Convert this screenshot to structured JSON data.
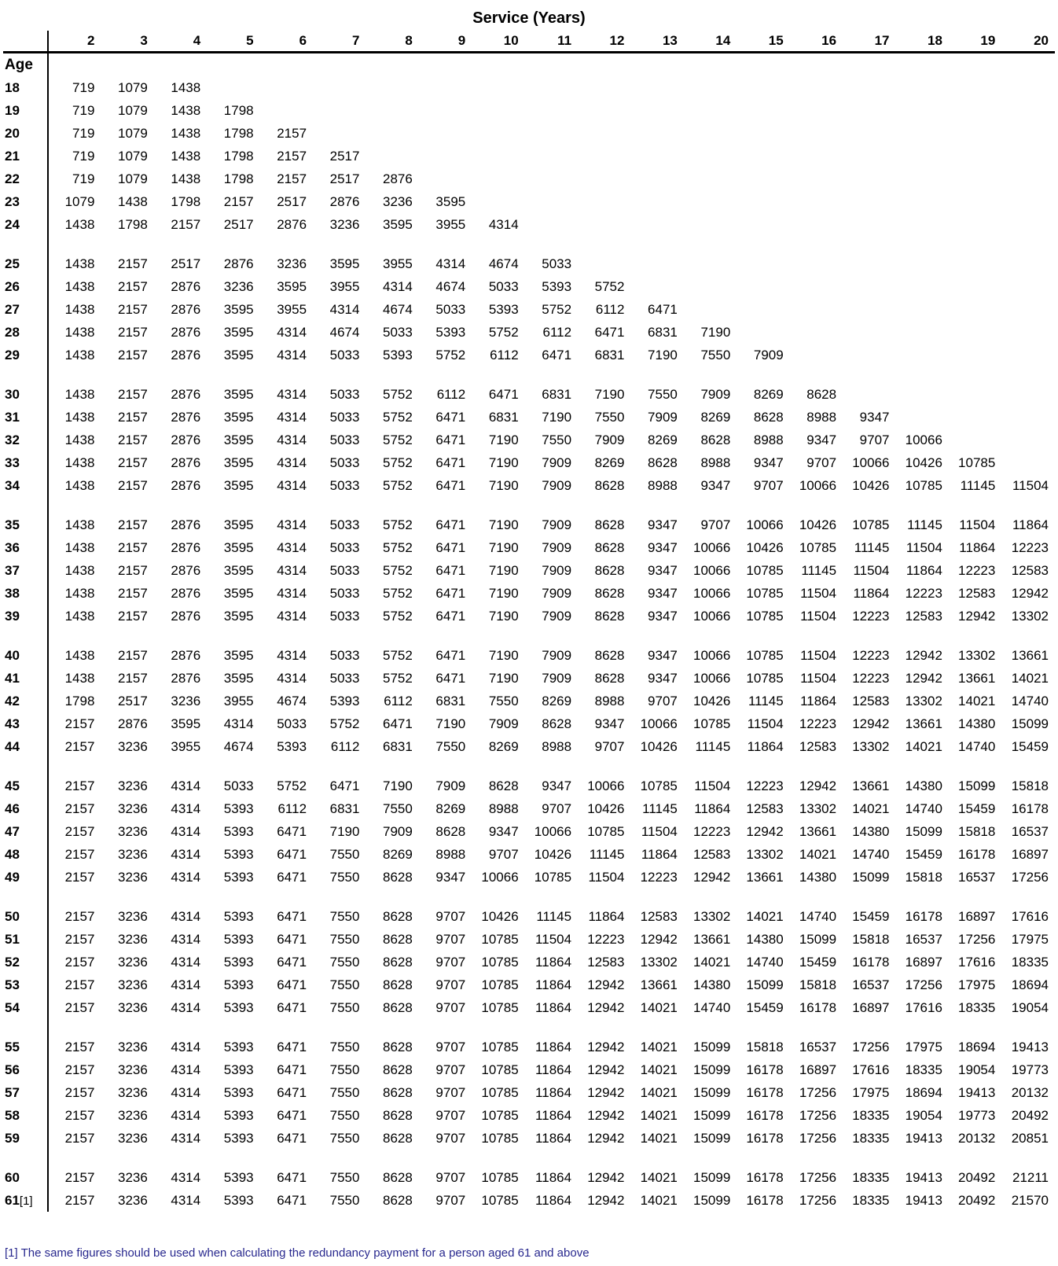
{
  "title": "Service (Years)",
  "age_header": "Age",
  "service_years": [
    "2",
    "3",
    "4",
    "5",
    "6",
    "7",
    "8",
    "9",
    "10",
    "11",
    "12",
    "13",
    "14",
    "15",
    "16",
    "17",
    "18",
    "19",
    "20"
  ],
  "footnote": "[1] The same figures should be used when calculating the redundancy payment for a person aged 61 and above",
  "colors": {
    "text": "#000000",
    "background": "#FFFFFF",
    "footnote_text": "#28288E",
    "rule": "#000000"
  },
  "groups": [
    {
      "rows": [
        {
          "age": "18",
          "values": [
            719,
            1079,
            1438
          ]
        },
        {
          "age": "19",
          "values": [
            719,
            1079,
            1438,
            1798
          ]
        },
        {
          "age": "20",
          "values": [
            719,
            1079,
            1438,
            1798,
            2157
          ]
        },
        {
          "age": "21",
          "values": [
            719,
            1079,
            1438,
            1798,
            2157,
            2517
          ]
        },
        {
          "age": "22",
          "values": [
            719,
            1079,
            1438,
            1798,
            2157,
            2517,
            2876
          ]
        },
        {
          "age": "23",
          "values": [
            1079,
            1438,
            1798,
            2157,
            2517,
            2876,
            3236,
            3595
          ]
        },
        {
          "age": "24",
          "values": [
            1438,
            1798,
            2157,
            2517,
            2876,
            3236,
            3595,
            3955,
            4314
          ]
        }
      ]
    },
    {
      "rows": [
        {
          "age": "25",
          "values": [
            1438,
            2157,
            2517,
            2876,
            3236,
            3595,
            3955,
            4314,
            4674,
            5033
          ]
        },
        {
          "age": "26",
          "values": [
            1438,
            2157,
            2876,
            3236,
            3595,
            3955,
            4314,
            4674,
            5033,
            5393,
            5752
          ]
        },
        {
          "age": "27",
          "values": [
            1438,
            2157,
            2876,
            3595,
            3955,
            4314,
            4674,
            5033,
            5393,
            5752,
            6112,
            6471
          ]
        },
        {
          "age": "28",
          "values": [
            1438,
            2157,
            2876,
            3595,
            4314,
            4674,
            5033,
            5393,
            5752,
            6112,
            6471,
            6831,
            7190
          ]
        },
        {
          "age": "29",
          "values": [
            1438,
            2157,
            2876,
            3595,
            4314,
            5033,
            5393,
            5752,
            6112,
            6471,
            6831,
            7190,
            7550,
            7909
          ]
        }
      ]
    },
    {
      "rows": [
        {
          "age": "30",
          "values": [
            1438,
            2157,
            2876,
            3595,
            4314,
            5033,
            5752,
            6112,
            6471,
            6831,
            7190,
            7550,
            7909,
            8269,
            8628
          ]
        },
        {
          "age": "31",
          "values": [
            1438,
            2157,
            2876,
            3595,
            4314,
            5033,
            5752,
            6471,
            6831,
            7190,
            7550,
            7909,
            8269,
            8628,
            8988,
            9347
          ]
        },
        {
          "age": "32",
          "values": [
            1438,
            2157,
            2876,
            3595,
            4314,
            5033,
            5752,
            6471,
            7190,
            7550,
            7909,
            8269,
            8628,
            8988,
            9347,
            9707,
            10066
          ]
        },
        {
          "age": "33",
          "values": [
            1438,
            2157,
            2876,
            3595,
            4314,
            5033,
            5752,
            6471,
            7190,
            7909,
            8269,
            8628,
            8988,
            9347,
            9707,
            10066,
            10426,
            10785
          ]
        },
        {
          "age": "34",
          "values": [
            1438,
            2157,
            2876,
            3595,
            4314,
            5033,
            5752,
            6471,
            7190,
            7909,
            8628,
            8988,
            9347,
            9707,
            10066,
            10426,
            10785,
            11145,
            11504
          ]
        }
      ]
    },
    {
      "rows": [
        {
          "age": "35",
          "values": [
            1438,
            2157,
            2876,
            3595,
            4314,
            5033,
            5752,
            6471,
            7190,
            7909,
            8628,
            9347,
            9707,
            10066,
            10426,
            10785,
            11145,
            11504,
            11864
          ]
        },
        {
          "age": "36",
          "values": [
            1438,
            2157,
            2876,
            3595,
            4314,
            5033,
            5752,
            6471,
            7190,
            7909,
            8628,
            9347,
            10066,
            10426,
            10785,
            11145,
            11504,
            11864,
            12223
          ]
        },
        {
          "age": "37",
          "values": [
            1438,
            2157,
            2876,
            3595,
            4314,
            5033,
            5752,
            6471,
            7190,
            7909,
            8628,
            9347,
            10066,
            10785,
            11145,
            11504,
            11864,
            12223,
            12583
          ]
        },
        {
          "age": "38",
          "values": [
            1438,
            2157,
            2876,
            3595,
            4314,
            5033,
            5752,
            6471,
            7190,
            7909,
            8628,
            9347,
            10066,
            10785,
            11504,
            11864,
            12223,
            12583,
            12942
          ]
        },
        {
          "age": "39",
          "values": [
            1438,
            2157,
            2876,
            3595,
            4314,
            5033,
            5752,
            6471,
            7190,
            7909,
            8628,
            9347,
            10066,
            10785,
            11504,
            12223,
            12583,
            12942,
            13302
          ]
        }
      ]
    },
    {
      "rows": [
        {
          "age": "40",
          "values": [
            1438,
            2157,
            2876,
            3595,
            4314,
            5033,
            5752,
            6471,
            7190,
            7909,
            8628,
            9347,
            10066,
            10785,
            11504,
            12223,
            12942,
            13302,
            13661
          ]
        },
        {
          "age": "41",
          "values": [
            1438,
            2157,
            2876,
            3595,
            4314,
            5033,
            5752,
            6471,
            7190,
            7909,
            8628,
            9347,
            10066,
            10785,
            11504,
            12223,
            12942,
            13661,
            14021
          ]
        },
        {
          "age": "42",
          "values": [
            1798,
            2517,
            3236,
            3955,
            4674,
            5393,
            6112,
            6831,
            7550,
            8269,
            8988,
            9707,
            10426,
            11145,
            11864,
            12583,
            13302,
            14021,
            14740
          ]
        },
        {
          "age": "43",
          "values": [
            2157,
            2876,
            3595,
            4314,
            5033,
            5752,
            6471,
            7190,
            7909,
            8628,
            9347,
            10066,
            10785,
            11504,
            12223,
            12942,
            13661,
            14380,
            15099
          ]
        },
        {
          "age": "44",
          "values": [
            2157,
            3236,
            3955,
            4674,
            5393,
            6112,
            6831,
            7550,
            8269,
            8988,
            9707,
            10426,
            11145,
            11864,
            12583,
            13302,
            14021,
            14740,
            15459
          ]
        }
      ]
    },
    {
      "rows": [
        {
          "age": "45",
          "values": [
            2157,
            3236,
            4314,
            5033,
            5752,
            6471,
            7190,
            7909,
            8628,
            9347,
            10066,
            10785,
            11504,
            12223,
            12942,
            13661,
            14380,
            15099,
            15818
          ]
        },
        {
          "age": "46",
          "values": [
            2157,
            3236,
            4314,
            5393,
            6112,
            6831,
            7550,
            8269,
            8988,
            9707,
            10426,
            11145,
            11864,
            12583,
            13302,
            14021,
            14740,
            15459,
            16178
          ]
        },
        {
          "age": "47",
          "values": [
            2157,
            3236,
            4314,
            5393,
            6471,
            7190,
            7909,
            8628,
            9347,
            10066,
            10785,
            11504,
            12223,
            12942,
            13661,
            14380,
            15099,
            15818,
            16537
          ]
        },
        {
          "age": "48",
          "values": [
            2157,
            3236,
            4314,
            5393,
            6471,
            7550,
            8269,
            8988,
            9707,
            10426,
            11145,
            11864,
            12583,
            13302,
            14021,
            14740,
            15459,
            16178,
            16897
          ]
        },
        {
          "age": "49",
          "values": [
            2157,
            3236,
            4314,
            5393,
            6471,
            7550,
            8628,
            9347,
            10066,
            10785,
            11504,
            12223,
            12942,
            13661,
            14380,
            15099,
            15818,
            16537,
            17256
          ]
        }
      ]
    },
    {
      "rows": [
        {
          "age": "50",
          "values": [
            2157,
            3236,
            4314,
            5393,
            6471,
            7550,
            8628,
            9707,
            10426,
            11145,
            11864,
            12583,
            13302,
            14021,
            14740,
            15459,
            16178,
            16897,
            17616
          ]
        },
        {
          "age": "51",
          "values": [
            2157,
            3236,
            4314,
            5393,
            6471,
            7550,
            8628,
            9707,
            10785,
            11504,
            12223,
            12942,
            13661,
            14380,
            15099,
            15818,
            16537,
            17256,
            17975
          ]
        },
        {
          "age": "52",
          "values": [
            2157,
            3236,
            4314,
            5393,
            6471,
            7550,
            8628,
            9707,
            10785,
            11864,
            12583,
            13302,
            14021,
            14740,
            15459,
            16178,
            16897,
            17616,
            18335
          ]
        },
        {
          "age": "53",
          "values": [
            2157,
            3236,
            4314,
            5393,
            6471,
            7550,
            8628,
            9707,
            10785,
            11864,
            12942,
            13661,
            14380,
            15099,
            15818,
            16537,
            17256,
            17975,
            18694
          ]
        },
        {
          "age": "54",
          "values": [
            2157,
            3236,
            4314,
            5393,
            6471,
            7550,
            8628,
            9707,
            10785,
            11864,
            12942,
            14021,
            14740,
            15459,
            16178,
            16897,
            17616,
            18335,
            19054
          ]
        }
      ]
    },
    {
      "rows": [
        {
          "age": "55",
          "values": [
            2157,
            3236,
            4314,
            5393,
            6471,
            7550,
            8628,
            9707,
            10785,
            11864,
            12942,
            14021,
            15099,
            15818,
            16537,
            17256,
            17975,
            18694,
            19413
          ]
        },
        {
          "age": "56",
          "values": [
            2157,
            3236,
            4314,
            5393,
            6471,
            7550,
            8628,
            9707,
            10785,
            11864,
            12942,
            14021,
            15099,
            16178,
            16897,
            17616,
            18335,
            19054,
            19773
          ]
        },
        {
          "age": "57",
          "values": [
            2157,
            3236,
            4314,
            5393,
            6471,
            7550,
            8628,
            9707,
            10785,
            11864,
            12942,
            14021,
            15099,
            16178,
            17256,
            17975,
            18694,
            19413,
            20132
          ]
        },
        {
          "age": "58",
          "values": [
            2157,
            3236,
            4314,
            5393,
            6471,
            7550,
            8628,
            9707,
            10785,
            11864,
            12942,
            14021,
            15099,
            16178,
            17256,
            18335,
            19054,
            19773,
            20492
          ]
        },
        {
          "age": "59",
          "values": [
            2157,
            3236,
            4314,
            5393,
            6471,
            7550,
            8628,
            9707,
            10785,
            11864,
            12942,
            14021,
            15099,
            16178,
            17256,
            18335,
            19413,
            20132,
            20851
          ]
        }
      ]
    },
    {
      "rows": [
        {
          "age": "60",
          "values": [
            2157,
            3236,
            4314,
            5393,
            6471,
            7550,
            8628,
            9707,
            10785,
            11864,
            12942,
            14021,
            15099,
            16178,
            17256,
            18335,
            19413,
            20492,
            21211
          ]
        },
        {
          "age": "61",
          "age_suffix": "[1]",
          "values": [
            2157,
            3236,
            4314,
            5393,
            6471,
            7550,
            8628,
            9707,
            10785,
            11864,
            12942,
            14021,
            15099,
            16178,
            17256,
            18335,
            19413,
            20492,
            21570
          ]
        }
      ]
    }
  ]
}
